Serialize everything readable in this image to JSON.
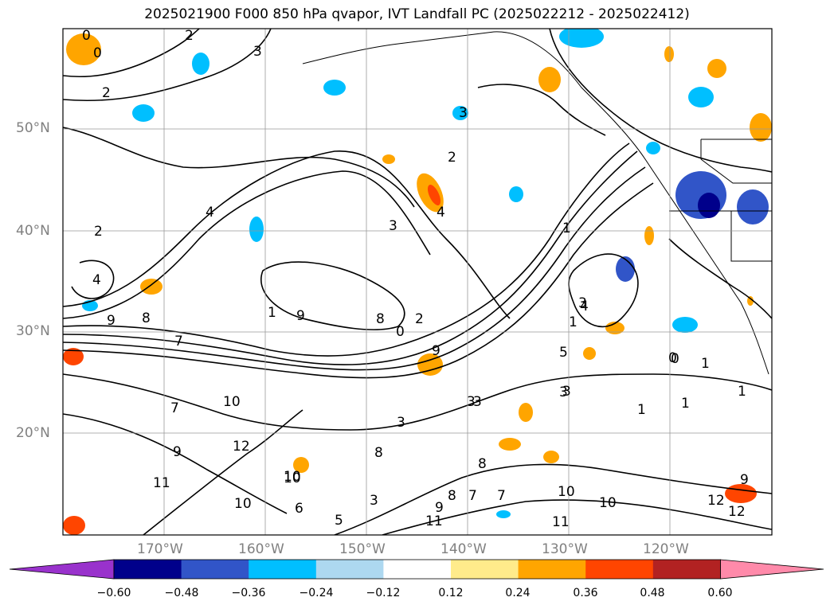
{
  "title": "2025021900 F000 850 hPa qvapor, IVT Landfall PC (2025022212 - 2025022412)",
  "map": {
    "region": "North-East Pacific",
    "lat_labels": [
      "50°N",
      "40°N",
      "30°N",
      "20°N"
    ],
    "lon_labels": [
      "170°W",
      "160°W",
      "150°W",
      "140°W",
      "130°W",
      "120°W"
    ],
    "gridlines": true
  },
  "contour_labels": [
    "0",
    "0",
    "2",
    "3",
    "2",
    "3",
    "2",
    "4",
    "2",
    "4",
    "3",
    "1",
    "4",
    "9",
    "8",
    "7",
    "1",
    "9",
    "8",
    "0",
    "2",
    "9",
    "3",
    "3",
    "4",
    "1",
    "1",
    "1",
    "0",
    "1",
    "10",
    "12",
    "11",
    "10",
    "9",
    "8",
    "3",
    "3",
    "3",
    "3",
    "5",
    "6",
    "8",
    "7",
    "7",
    "8",
    "10",
    "10",
    "11",
    "11",
    "9",
    "12",
    "10",
    "7",
    "9",
    "1",
    "12",
    "10",
    "0",
    "5",
    "3"
  ],
  "colorbar": {
    "colors": [
      "#9932cc",
      "#00008b",
      "#3155c8",
      "#00bfff",
      "#add8f0",
      "#ffffff",
      "#ffeb8b",
      "#ffa500",
      "#ff4500",
      "#b22222",
      "#ff8aaa"
    ],
    "tick_labels": [
      "−0.60",
      "−0.48",
      "−0.36",
      "−0.24",
      "−0.12",
      "0.12",
      "0.24",
      "0.36",
      "0.48",
      "0.60"
    ]
  }
}
